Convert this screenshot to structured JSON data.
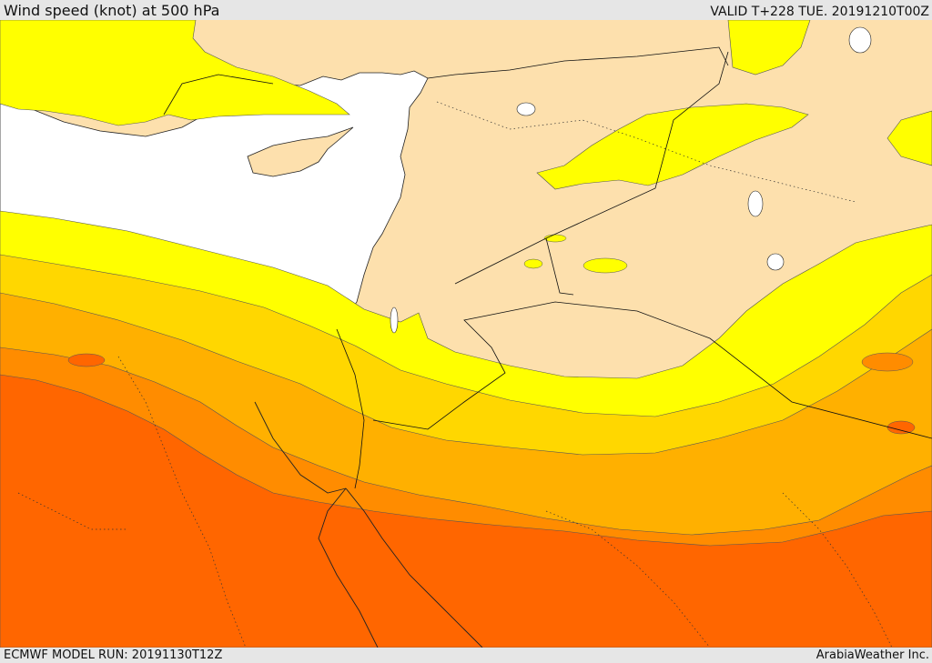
{
  "header": {
    "title": "Wind speed (knot) at 500 hPa",
    "valid": "VALID T+228 TUE. 20191210T00Z"
  },
  "footer": {
    "model_run": "ECMWF MODEL RUN: 20191130T12Z",
    "credit": "ArabiaWeather Inc."
  },
  "map": {
    "sea_color": "#ffffff",
    "land_color": "#fde0ad",
    "speed_colors": [
      "#fde0ad",
      "#ffff00",
      "#ffd700",
      "#ffb000",
      "#ff8c00",
      "#ff6600"
    ]
  }
}
